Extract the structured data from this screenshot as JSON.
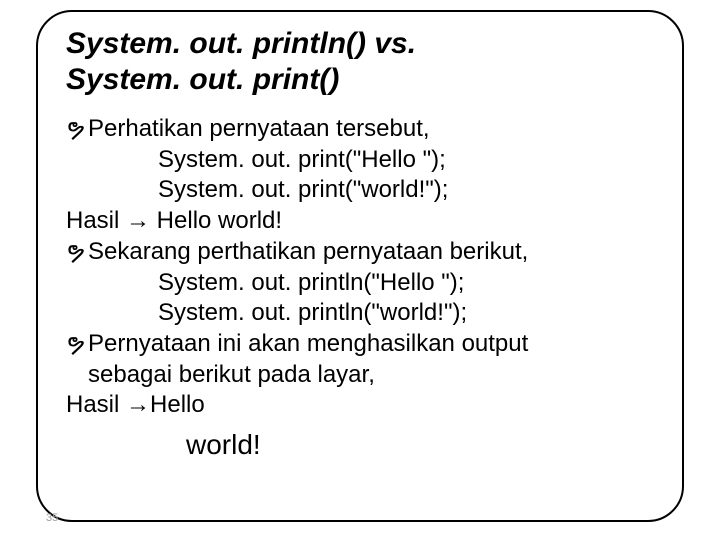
{
  "title_line1": "System. out. println()  vs.",
  "title_line2": "System. out. print()",
  "bullet_mark": "ຯ",
  "arrow": "→",
  "line1": "Perhatikan pernyataan tersebut,",
  "line2": "System. out. print(\"Hello \");",
  "line3": "System. out. print(\"world!\");",
  "line4_a": "Hasil ",
  "line4_b": " Hello world!",
  "line5": "Sekarang perthatikan pernyataan berikut,",
  "line6": "System. out. println(\"Hello \");",
  "line7": "System. out. println(\"world!\");",
  "line8": "Pernyataan ini akan menghasilkan output",
  "line8b": "sebagai berikut pada layar,",
  "line9_a": " Hasil ",
  "line9_b": "Hello",
  "line10": "world!",
  "page_number": "35",
  "colors": {
    "text": "#000000",
    "border": "#000000",
    "background": "#ffffff",
    "pagenum": "#9a9a9a"
  }
}
